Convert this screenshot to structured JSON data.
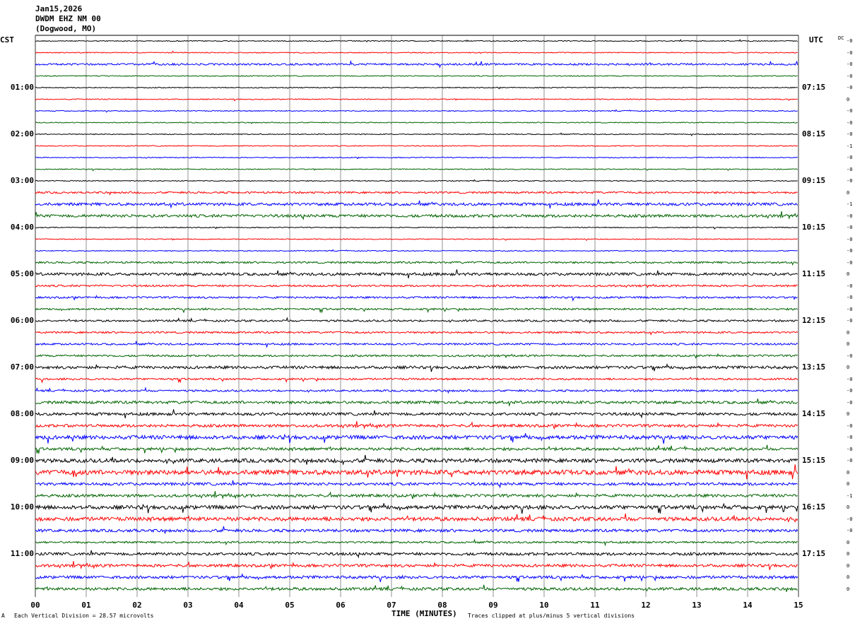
{
  "header": {
    "date": "Jan15,2026",
    "station": "DWDM EHZ NM 00",
    "location": "(Dogwood, MO)"
  },
  "axes": {
    "left_label": "CST",
    "right_label": "UTC",
    "dc_label": "DC",
    "xlabel": "TIME (MINUTES)",
    "footer_left": "Each Vertical Division =   28.57 microvolts",
    "footer_right": "Traces clipped at plus/minus 5 vertical divisions",
    "corner_mark": "A"
  },
  "chart_data": {
    "type": "line",
    "title": "",
    "xlabel": "TIME (MINUTES)",
    "ylabel": "",
    "xlim": [
      0,
      15
    ],
    "x_ticks": [
      "00",
      "01",
      "02",
      "03",
      "04",
      "05",
      "06",
      "07",
      "08",
      "09",
      "10",
      "11",
      "12",
      "13",
      "14",
      "15"
    ],
    "trace_count": 48,
    "minutes_per_trace": 15,
    "trace_colors": [
      "#000000",
      "#ff0000",
      "#0000ff",
      "#006400"
    ],
    "grid": true,
    "left_hour_labels": [
      "01:00",
      "02:00",
      "03:00",
      "04:00",
      "05:00",
      "06:00",
      "07:00",
      "08:00",
      "09:00",
      "10:00",
      "11:00"
    ],
    "right_hour_labels": [
      "07:15",
      "08:15",
      "09:15",
      "10:15",
      "11:15",
      "12:15",
      "13:15",
      "14:15",
      "15:15",
      "16:15",
      "17:15"
    ],
    "dc_offsets": [
      "-0",
      "-0",
      "-0",
      "-0",
      "-0",
      "0",
      "-0",
      "-0",
      "-0",
      "-1",
      "-0",
      "-0",
      "-0",
      "0",
      "-1",
      "-0",
      "-0",
      "-0",
      "-0",
      "-0",
      "0",
      "-0",
      "-0",
      "-0",
      "-0",
      "0",
      "0",
      "-0",
      "0",
      "-0",
      "-0",
      "-0",
      "0",
      "-0",
      "-0",
      "-0",
      "-0",
      "0",
      "0",
      "-1",
      "0",
      "-0",
      "-0",
      "0",
      "0",
      "0",
      "0",
      "0"
    ],
    "trace_amplitude": [
      1,
      1,
      2,
      1,
      1,
      1,
      1,
      1,
      1,
      1,
      1,
      1,
      1,
      2,
      3,
      3,
      1,
      1,
      1,
      2,
      3,
      2,
      2,
      2,
      2,
      2,
      2,
      2,
      3,
      2,
      2,
      3,
      3,
      3,
      4,
      3,
      4,
      5,
      3,
      3,
      4,
      4,
      3,
      2,
      3,
      3,
      3,
      3
    ]
  }
}
